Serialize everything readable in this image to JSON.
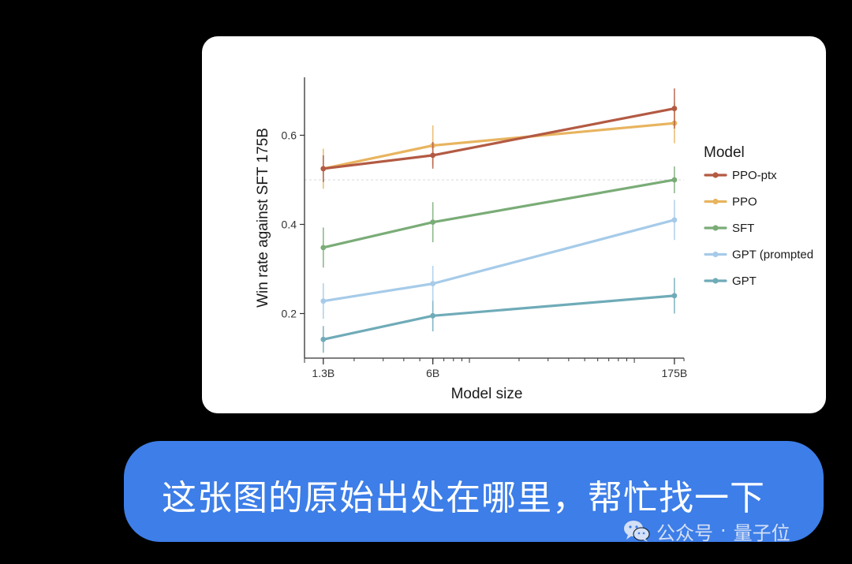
{
  "chart_data": {
    "type": "line",
    "xlabel": "Model size",
    "ylabel": "Win rate against SFT 175B",
    "x_scale": "log",
    "x_ticks": [
      {
        "label": "1.3B",
        "value": 1.3
      },
      {
        "label": "6B",
        "value": 6
      },
      {
        "label": "175B",
        "value": 175
      }
    ],
    "x_range": [
      1.0,
      200
    ],
    "y_ticks": [
      0.2,
      0.4,
      0.6
    ],
    "y_range": [
      0.1,
      0.73
    ],
    "reference_line": 0.5,
    "legend_title": "Model",
    "legend_position": "right",
    "x": [
      1.3,
      6,
      175
    ],
    "series": [
      {
        "name": "PPO-ptx",
        "color": "#b35a43",
        "values": [
          0.525,
          0.555,
          0.66
        ],
        "errors": [
          0.03,
          0.03,
          0.045
        ]
      },
      {
        "name": "PPO",
        "color": "#e8b45f",
        "values": [
          0.525,
          0.577,
          0.627
        ],
        "errors": [
          0.045,
          0.045,
          0.045
        ]
      },
      {
        "name": "SFT",
        "color": "#7aac77",
        "values": [
          0.348,
          0.405,
          0.5
        ],
        "errors": [
          0.045,
          0.045,
          0.03
        ]
      },
      {
        "name": "GPT (prompted",
        "color": "#a6cbe9",
        "values": [
          0.228,
          0.267,
          0.41
        ],
        "errors": [
          0.04,
          0.04,
          0.045
        ]
      },
      {
        "name": "GPT",
        "color": "#6fabb8",
        "values": [
          0.142,
          0.195,
          0.24
        ],
        "errors": [
          0.03,
          0.035,
          0.04
        ]
      }
    ]
  },
  "message": {
    "text": "这张图的原始出处在哪里，帮忙找一下"
  },
  "watermark": {
    "icon": "wechat-icon",
    "account": "公众号",
    "separator": "·",
    "name": "量子位"
  }
}
